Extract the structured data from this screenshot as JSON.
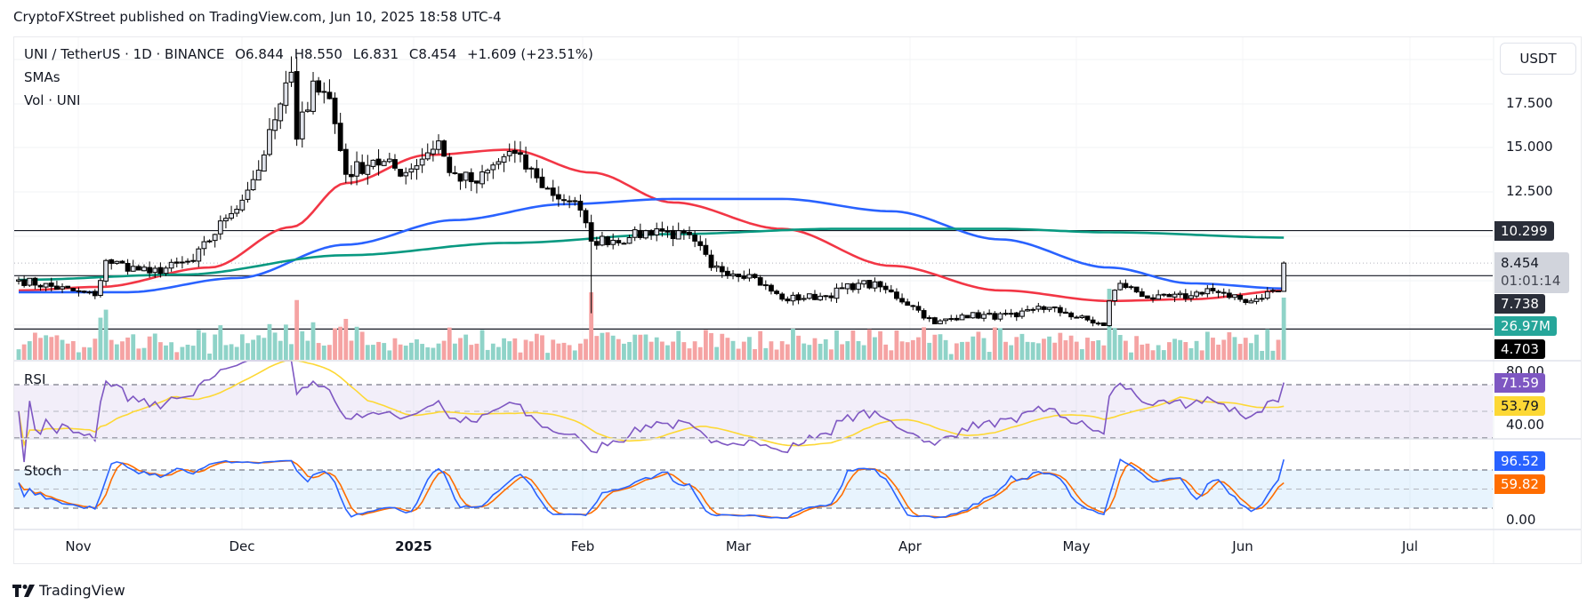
{
  "published": "CryptoFXStreet published on TradingView.com, Jun 10, 2025 18:58 UTC-4",
  "legend": {
    "symbol": "UNI / TetherUS · 1D · BINANCE",
    "open": "O6.844",
    "high": "H8.550",
    "low": "L6.831",
    "close": "C8.454",
    "change": "+1.609 (+23.51%)",
    "smas": "SMAs",
    "vol": "Vol · UNI"
  },
  "currency_button": "USDT",
  "price_axis": [
    "17.500",
    "15.000",
    "12.500"
  ],
  "tags": {
    "level_high": "10.299",
    "last_price": "8.454",
    "countdown": "01:01:14",
    "level_mid": "7.738",
    "volume": "26.97M",
    "level_low": "4.703",
    "rsi": "71.59",
    "rsi_ma": "53.79",
    "stoch_k": "96.52",
    "stoch_d": "59.82"
  },
  "rsi_pane": {
    "label": "RSI",
    "ticks": [
      "80.00",
      "40.00"
    ]
  },
  "stoch_pane": {
    "label": "Stoch",
    "ticks": [
      "0.00"
    ]
  },
  "time_axis": [
    {
      "label": "Nov",
      "bold": false
    },
    {
      "label": "Dec",
      "bold": false
    },
    {
      "label": "2025",
      "bold": true
    },
    {
      "label": "Feb",
      "bold": false
    },
    {
      "label": "Mar",
      "bold": false
    },
    {
      "label": "Apr",
      "bold": false
    },
    {
      "label": "May",
      "bold": false
    },
    {
      "label": "Jun",
      "bold": false
    },
    {
      "label": "Jul",
      "bold": false
    }
  ],
  "brand": "TradingView",
  "colors": {
    "up_candle": "#e0e3eb",
    "down_candle": "#000000",
    "vol_up": "#8fd3c8",
    "vol_down": "#f5a3a3",
    "sma_fast": "#f23645",
    "sma_mid": "#2962ff",
    "sma_slow": "#089981",
    "rsi": "#7e57c2",
    "rsi_ma": "#fdd835",
    "stoch_k": "#2962ff",
    "stoch_d": "#ff6d00",
    "last_price_tag": "#d1d4dc",
    "volume_tag": "#26a69a"
  },
  "chart_data": {
    "type": "candlestick",
    "title": "UNI / TetherUS · 1D · BINANCE",
    "xlabel": "",
    "ylabel": "USDT",
    "x_start": "2024-10-21",
    "x_end": "2025-06-10",
    "ylim": [
      3.4,
      21.5
    ],
    "y_ticks": [
      12.5,
      15.0,
      17.5
    ],
    "x_ticks": [
      "Nov",
      "Dec",
      "2025",
      "Feb",
      "Mar",
      "Apr",
      "May",
      "Jun",
      "Jul"
    ],
    "horizontal_levels": [
      10.299,
      7.738,
      4.703
    ],
    "last": {
      "open": 6.844,
      "high": 8.55,
      "low": 6.831,
      "close": 8.454,
      "change": 1.609,
      "change_pct": 23.51
    },
    "close_anchors": [
      {
        "date": "2024-10-21",
        "close": 7.5
      },
      {
        "date": "2024-11-04",
        "close": 6.6
      },
      {
        "date": "2024-11-06",
        "close": 8.6
      },
      {
        "date": "2024-11-14",
        "close": 7.9
      },
      {
        "date": "2024-11-22",
        "close": 8.6
      },
      {
        "date": "2024-11-28",
        "close": 11.0
      },
      {
        "date": "2024-12-02",
        "close": 12.6
      },
      {
        "date": "2024-12-05",
        "close": 14.6
      },
      {
        "date": "2024-12-08",
        "close": 17.5
      },
      {
        "date": "2024-12-10",
        "close": 19.3
      },
      {
        "date": "2024-12-11",
        "close": 15.5
      },
      {
        "date": "2024-12-14",
        "close": 18.8
      },
      {
        "date": "2024-12-17",
        "close": 17.8
      },
      {
        "date": "2024-12-20",
        "close": 13.5
      },
      {
        "date": "2024-12-25",
        "close": 14.3
      },
      {
        "date": "2024-12-31",
        "close": 13.6
      },
      {
        "date": "2025-01-06",
        "close": 15.4
      },
      {
        "date": "2025-01-08",
        "close": 13.6
      },
      {
        "date": "2025-01-13",
        "close": 13.0
      },
      {
        "date": "2025-01-19",
        "close": 14.8
      },
      {
        "date": "2025-01-24",
        "close": 13.3
      },
      {
        "date": "2025-01-27",
        "close": 12.3
      },
      {
        "date": "2025-01-31",
        "close": 12.0
      },
      {
        "date": "2025-02-03",
        "close": 9.7
      },
      {
        "date": "2025-02-10",
        "close": 9.9
      },
      {
        "date": "2025-02-15",
        "close": 10.4
      },
      {
        "date": "2025-02-22",
        "close": 9.7
      },
      {
        "date": "2025-02-25",
        "close": 8.2
      },
      {
        "date": "2025-03-04",
        "close": 7.8
      },
      {
        "date": "2025-03-10",
        "close": 6.4
      },
      {
        "date": "2025-03-18",
        "close": 6.6
      },
      {
        "date": "2025-03-24",
        "close": 7.3
      },
      {
        "date": "2025-03-28",
        "close": 7.1
      },
      {
        "date": "2025-04-03",
        "close": 6.0
      },
      {
        "date": "2025-04-07",
        "close": 5.0
      },
      {
        "date": "2025-04-12",
        "close": 5.5
      },
      {
        "date": "2025-04-22",
        "close": 5.4
      },
      {
        "date": "2025-04-26",
        "close": 6.0
      },
      {
        "date": "2025-05-01",
        "close": 5.6
      },
      {
        "date": "2025-05-08",
        "close": 4.9
      },
      {
        "date": "2025-05-09",
        "close": 6.3
      },
      {
        "date": "2025-05-11",
        "close": 7.3
      },
      {
        "date": "2025-05-17",
        "close": 6.4
      },
      {
        "date": "2025-05-24",
        "close": 6.6
      },
      {
        "date": "2025-05-27",
        "close": 7.0
      },
      {
        "date": "2025-05-31",
        "close": 6.5
      },
      {
        "date": "2025-06-04",
        "close": 6.3
      },
      {
        "date": "2025-06-08",
        "close": 6.9
      },
      {
        "date": "2025-06-09",
        "close": 6.844
      },
      {
        "date": "2025-06-10",
        "close": 8.454
      }
    ],
    "sma_series": [
      {
        "name": "SMA fast (red)",
        "anchors": [
          [
            0,
            6.9
          ],
          [
            15,
            7.1
          ],
          [
            35,
            8.2
          ],
          [
            50,
            10.5
          ],
          [
            60,
            13.0
          ],
          [
            75,
            14.6
          ],
          [
            90,
            14.9
          ],
          [
            105,
            13.6
          ],
          [
            120,
            11.9
          ],
          [
            140,
            10.4
          ],
          [
            160,
            8.3
          ],
          [
            180,
            6.9
          ],
          [
            200,
            6.3
          ],
          [
            215,
            6.4
          ],
          [
            233,
            6.9
          ]
        ]
      },
      {
        "name": "SMA mid (blue)",
        "anchors": [
          [
            0,
            6.8
          ],
          [
            20,
            6.8
          ],
          [
            40,
            7.6
          ],
          [
            60,
            9.5
          ],
          [
            80,
            10.9
          ],
          [
            100,
            11.8
          ],
          [
            120,
            12.1
          ],
          [
            140,
            12.1
          ],
          [
            160,
            11.4
          ],
          [
            180,
            9.8
          ],
          [
            200,
            8.2
          ],
          [
            215,
            7.3
          ],
          [
            233,
            7.0
          ]
        ]
      },
      {
        "name": "SMA slow (green)",
        "anchors": [
          [
            0,
            7.5
          ],
          [
            30,
            7.8
          ],
          [
            60,
            8.9
          ],
          [
            90,
            9.6
          ],
          [
            120,
            10.1
          ],
          [
            150,
            10.4
          ],
          [
            180,
            10.4
          ],
          [
            200,
            10.2
          ],
          [
            233,
            9.9
          ]
        ]
      }
    ],
    "volume_last": "26.97M",
    "rsi": {
      "range": [
        0,
        100
      ],
      "overbought": 70,
      "mid": 50,
      "oversold": 30,
      "last": 71.59,
      "ma_last": 53.79
    },
    "stoch": {
      "range": [
        0,
        100
      ],
      "upper": 80,
      "mid": 50,
      "lower": 20,
      "k_last": 96.52,
      "d_last": 59.82
    }
  }
}
